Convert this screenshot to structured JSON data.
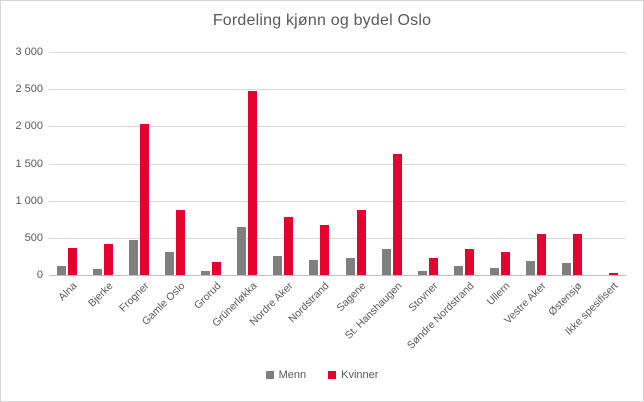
{
  "chart_title": "Fordeling kjønn og bydel Oslo",
  "chart_data": {
    "type": "bar",
    "title": "Fordeling kjønn og bydel Oslo",
    "categories": [
      "Alna",
      "Bjerke",
      "Frogner",
      "Gamle Oslo",
      "Grorud",
      "Grünerløkka",
      "Nordre Aker",
      "Nordstrand",
      "Sagene",
      "St. Hanshaugen",
      "Stovner",
      "Søndre Nordstrand",
      "Ullern",
      "Vestre Aker",
      "Østensjø",
      "Ikke spesifisert"
    ],
    "series": [
      {
        "name": "Menn",
        "color": "#7f7f7f",
        "values": [
          120,
          75,
          475,
          310,
          55,
          650,
          255,
          200,
          225,
          345,
          60,
          120,
          100,
          190,
          165,
          0
        ]
      },
      {
        "name": "Kvinner",
        "color": "#e4032e",
        "values": [
          360,
          420,
          2030,
          870,
          180,
          2470,
          780,
          670,
          870,
          1630,
          225,
          355,
          310,
          545,
          545,
          30
        ]
      }
    ],
    "xlabel": "",
    "ylabel": "",
    "ylim": [
      0,
      3000
    ],
    "ytick_step": 500,
    "ytick_labels": [
      "0",
      "500",
      "1 000",
      "1 500",
      "2 000",
      "2 500",
      "3 000"
    ],
    "grid": true,
    "gridline_color": "#d9d9d9",
    "axis_line_color": "#bfbfbf",
    "text_color": "#595959",
    "legend_position": "bottom"
  }
}
